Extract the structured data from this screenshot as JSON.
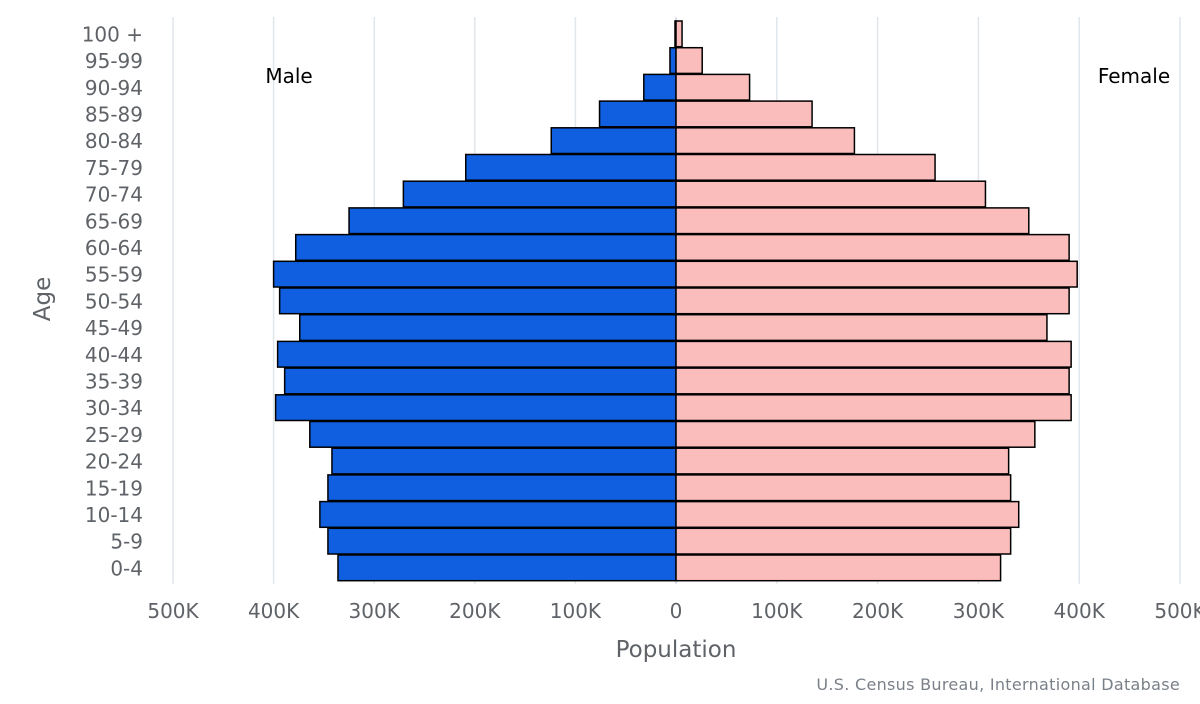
{
  "source": "U.S. Census Bureau, International Database",
  "chart_data": {
    "type": "bar",
    "orientation": "horizontal",
    "layout": "population-pyramid",
    "xlabel": "Population",
    "ylabel": "Age",
    "xlim": [
      -500000,
      500000
    ],
    "x_ticks": [
      -500000,
      -400000,
      -300000,
      -200000,
      -100000,
      0,
      100000,
      200000,
      300000,
      400000,
      500000
    ],
    "x_tick_labels": [
      "500K",
      "400K",
      "300K",
      "200K",
      "100K",
      "0",
      "100K",
      "200K",
      "300K",
      "400K",
      "500K"
    ],
    "categories": [
      "100 +",
      "95-99",
      "90-94",
      "85-89",
      "80-84",
      "75-79",
      "70-74",
      "65-69",
      "60-64",
      "55-59",
      "50-54",
      "45-49",
      "40-44",
      "35-39",
      "30-34",
      "25-29",
      "20-24",
      "15-19",
      "10-14",
      "5-9",
      "0-4"
    ],
    "grid": true,
    "legend": "in-plot labels: Male top-left, Female top-right",
    "series": [
      {
        "name": "Male",
        "color": "#0f5fe0",
        "values": [
          1000,
          6000,
          32000,
          76000,
          124000,
          209000,
          271000,
          325000,
          378000,
          400000,
          394000,
          374000,
          396000,
          389000,
          398000,
          364000,
          342000,
          346000,
          354000,
          346000,
          336000
        ]
      },
      {
        "name": "Female",
        "color": "#fbbcbc",
        "values": [
          6000,
          26000,
          73000,
          135000,
          177000,
          257000,
          307000,
          350000,
          390000,
          398000,
          390000,
          368000,
          392000,
          390000,
          392000,
          356000,
          330000,
          332000,
          340000,
          332000,
          322000
        ]
      }
    ]
  }
}
